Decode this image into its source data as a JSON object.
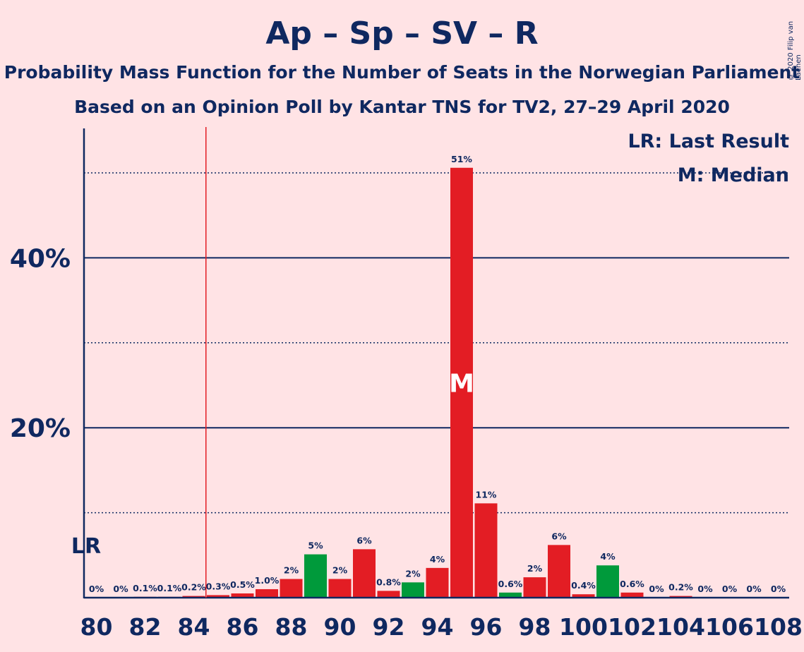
{
  "title": "Ap – Sp – SV – R",
  "subtitle_1": "Probability Mass Function for the Number of Seats in the Norwegian Parliament",
  "subtitle_2": "Based on an Opinion Poll by Kantar TNS for TV2, 27–29 April 2020",
  "copyright": "© 2020 Filip van Laenen",
  "legend": {
    "last_result": "LR: Last Result",
    "median": "M: Median"
  },
  "colors": {
    "background": "#FFE3E5",
    "axis": "#0F2860",
    "red": "#E31D24",
    "green": "#009A3B",
    "lr_line": "#E31D24"
  },
  "chart_data": {
    "type": "bar",
    "x": [
      80,
      81,
      82,
      83,
      84,
      85,
      86,
      87,
      88,
      89,
      90,
      91,
      92,
      93,
      94,
      95,
      96,
      97,
      98,
      99,
      100,
      101,
      102,
      103,
      104,
      105,
      106,
      107,
      108
    ],
    "values": [
      0,
      0,
      0.1,
      0.1,
      0.2,
      0.3,
      0.5,
      1.0,
      2.2,
      5.1,
      2.2,
      5.7,
      0.8,
      1.8,
      3.5,
      50.6,
      11.1,
      0.6,
      2.4,
      6.2,
      0.4,
      3.8,
      0.6,
      0,
      0.2,
      0,
      0,
      0,
      0
    ],
    "labels": [
      "0%",
      "0%",
      "0.1%",
      "0.1%",
      "0.2%",
      "0.3%",
      "0.5%",
      "1.0%",
      "2%",
      "5%",
      "2%",
      "6%",
      "0.8%",
      "2%",
      "4%",
      "51%",
      "11%",
      "0.6%",
      "2%",
      "6%",
      "0.4%",
      "4%",
      "0.6%",
      "0%",
      "0.2%",
      "0%",
      "0%",
      "0%",
      "0%"
    ],
    "bar_colors": [
      "red",
      "red",
      "red",
      "red",
      "red",
      "red",
      "red",
      "red",
      "red",
      "green",
      "red",
      "red",
      "red",
      "green",
      "red",
      "red",
      "red",
      "green",
      "red",
      "red",
      "red",
      "green",
      "red",
      "red",
      "red",
      "red",
      "red",
      "red",
      "red"
    ],
    "x_tick_labels": [
      "80",
      "82",
      "84",
      "86",
      "88",
      "90",
      "92",
      "94",
      "96",
      "98",
      "100",
      "102",
      "104",
      "106",
      "108"
    ],
    "y_tick_labels": [
      "20%",
      "40%"
    ],
    "y_ticks": [
      20,
      40
    ],
    "y_minor_gridlines": [
      10,
      30,
      50
    ],
    "ylim": [
      0,
      55
    ],
    "last_result": 85,
    "last_result_label": "LR",
    "median": 95,
    "median_label": "M",
    "legend_position": "top-right"
  }
}
